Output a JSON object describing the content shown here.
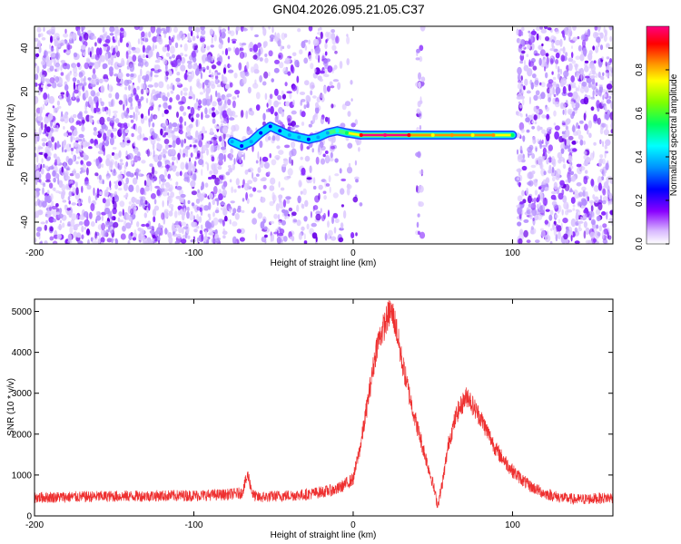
{
  "title": "GN04.2026.095.21.05.C37",
  "chart_data": [
    {
      "type": "heatmap",
      "title": "GN04.2026.095.21.05.C37",
      "xlabel": "Height of straight line (km)",
      "ylabel": "Frequency (Hz)",
      "xlim": [
        -200,
        163
      ],
      "ylim": [
        -50,
        50
      ],
      "xticks": [
        -200,
        -100,
        0,
        100
      ],
      "yticks": [
        -40,
        -20,
        0,
        20,
        40
      ],
      "colorbar": {
        "label": "Normalized spectral amplitude",
        "range": [
          0,
          1
        ],
        "ticks": [
          0.0,
          0.2,
          0.4,
          0.6,
          0.8
        ],
        "colors": [
          "#ffffff",
          "#cfa8ff",
          "#7b00ff",
          "#0000ff",
          "#00a0ff",
          "#00ffff",
          "#00ff60",
          "#80ff00",
          "#ffff00",
          "#ff9000",
          "#ff0000",
          "#ff0080"
        ]
      },
      "noise_regions": [
        {
          "x": [
            -200,
            -78
          ],
          "density": 1.0
        },
        {
          "x": [
            -78,
            -10
          ],
          "density": 0.55
        },
        {
          "x": [
            -10,
            5
          ],
          "density": 0.2
        },
        {
          "x": [
            40,
            44
          ],
          "density": 0.6
        },
        {
          "x": [
            103,
            163
          ],
          "density": 0.95
        }
      ],
      "signal_track": [
        {
          "x": -76,
          "y": -3,
          "amp": 0.35
        },
        {
          "x": -70,
          "y": -5,
          "amp": 0.3
        },
        {
          "x": -64,
          "y": -3,
          "amp": 0.32
        },
        {
          "x": -58,
          "y": 1,
          "amp": 0.3
        },
        {
          "x": -52,
          "y": 4,
          "amp": 0.28
        },
        {
          "x": -46,
          "y": 2,
          "amp": 0.3
        },
        {
          "x": -40,
          "y": 0,
          "amp": 0.35
        },
        {
          "x": -34,
          "y": -1,
          "amp": 0.32
        },
        {
          "x": -28,
          "y": -2,
          "amp": 0.3
        },
        {
          "x": -22,
          "y": -1,
          "amp": 0.38
        },
        {
          "x": -16,
          "y": 1,
          "amp": 0.4
        },
        {
          "x": -10,
          "y": 2,
          "amp": 0.45
        },
        {
          "x": -4,
          "y": 1,
          "amp": 0.55
        },
        {
          "x": 5,
          "y": 0,
          "amp": 0.95
        },
        {
          "x": 20,
          "y": 0,
          "amp": 1.0
        },
        {
          "x": 35,
          "y": 0,
          "amp": 0.95
        },
        {
          "x": 50,
          "y": 0,
          "amp": 0.7
        },
        {
          "x": 62,
          "y": 0,
          "amp": 0.85
        },
        {
          "x": 75,
          "y": 0,
          "amp": 0.75
        },
        {
          "x": 88,
          "y": 0,
          "amp": 0.85
        },
        {
          "x": 100,
          "y": 0,
          "amp": 0.55
        }
      ]
    },
    {
      "type": "line",
      "xlabel": "Height of straight line (km)",
      "ylabel": "SNR (10 * v/v)",
      "xlim": [
        -200,
        163
      ],
      "ylim": [
        0,
        5300
      ],
      "xticks": [
        -200,
        -100,
        0,
        100
      ],
      "yticks": [
        0,
        1000,
        2000,
        3000,
        4000,
        5000
      ],
      "color": "#ee3030",
      "series": [
        {
          "name": "SNR",
          "x": [
            -200,
            -150,
            -100,
            -80,
            -70,
            -66,
            -63,
            -60,
            -50,
            -30,
            -10,
            0,
            5,
            10,
            15,
            20,
            23,
            25,
            27,
            30,
            35,
            40,
            45,
            50,
            53,
            56,
            60,
            65,
            70,
            72,
            75,
            80,
            90,
            100,
            110,
            120,
            130,
            140,
            150,
            163
          ],
          "values": [
            450,
            480,
            500,
            520,
            560,
            1000,
            520,
            450,
            480,
            520,
            650,
            900,
            1800,
            3000,
            4200,
            4700,
            5000,
            4900,
            4600,
            3900,
            3000,
            2200,
            1500,
            800,
            250,
            800,
            1800,
            2500,
            2850,
            2950,
            2700,
            2400,
            1600,
            1100,
            750,
            550,
            450,
            400,
            420,
            450
          ],
          "noise_amplitude": 380
        }
      ]
    }
  ]
}
